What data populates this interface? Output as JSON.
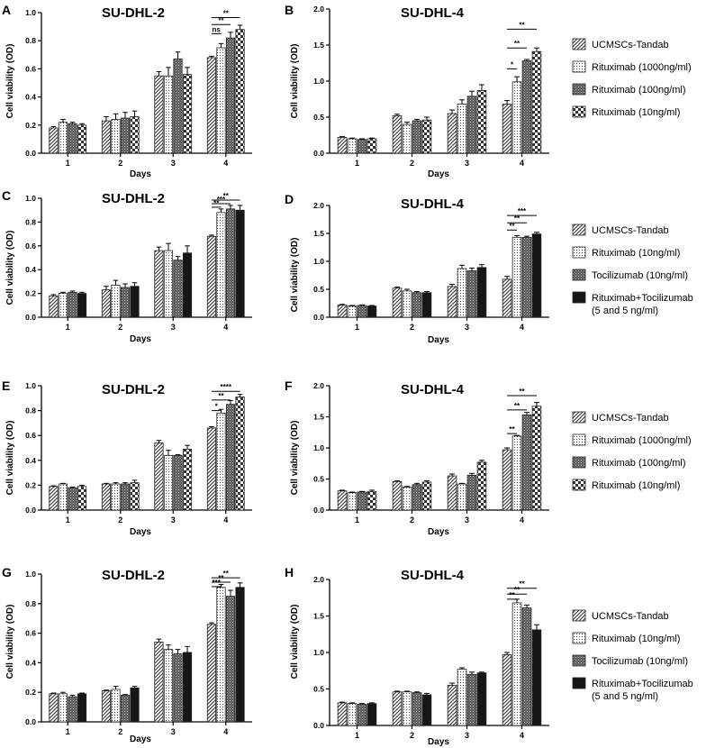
{
  "chart_data": [
    {
      "type": "bar",
      "panel": "A",
      "title": "SU-DHL-2",
      "xlabel": "Days",
      "ylabel": "Cell viability (OD)",
      "ylim": [
        0,
        1.0
      ],
      "yticks": [
        "0.0",
        "0.2",
        "0.4",
        "0.6",
        "0.8",
        "1.0"
      ],
      "categories": [
        "1",
        "2",
        "3",
        "4"
      ],
      "series": [
        {
          "name": "UCMSCs-Tandab",
          "pattern": "diag",
          "values": [
            0.18,
            0.23,
            0.55,
            0.68
          ],
          "errors": [
            0.01,
            0.03,
            0.03,
            0.01
          ]
        },
        {
          "name": "Rituximab (1000ng/ml)",
          "pattern": "dots",
          "values": [
            0.22,
            0.24,
            0.55,
            0.75
          ],
          "errors": [
            0.02,
            0.04,
            0.06,
            0.03
          ]
        },
        {
          "name": "Rituximab (100ng/ml)",
          "pattern": "dense",
          "values": [
            0.21,
            0.25,
            0.67,
            0.82
          ],
          "errors": [
            0.01,
            0.04,
            0.05,
            0.04
          ]
        },
        {
          "name": "Rituximab (10ng/ml)",
          "pattern": "checker",
          "values": [
            0.2,
            0.26,
            0.56,
            0.88
          ],
          "errors": [
            0.01,
            0.04,
            0.05,
            0.03
          ]
        }
      ],
      "significance": [
        {
          "label": "**",
          "from": 0,
          "to": 3,
          "y": 0.965
        },
        {
          "label": "**",
          "from": 0,
          "to": 2,
          "y": 0.915
        },
        {
          "label": "ns",
          "from": 0,
          "to": 1,
          "y": 0.85
        }
      ]
    },
    {
      "type": "bar",
      "panel": "B",
      "title": "SU-DHL-4",
      "xlabel": "Days",
      "ylabel": "Cell viability (OD)",
      "ylim": [
        0,
        2.0
      ],
      "yticks": [
        "0.0",
        "0.5",
        "1.0",
        "1.5",
        "2.0"
      ],
      "categories": [
        "1",
        "2",
        "3",
        "4"
      ],
      "series": [
        {
          "name": "UCMSCs-Tandab",
          "pattern": "diag",
          "values": [
            0.22,
            0.52,
            0.55,
            0.68
          ],
          "errors": [
            0.01,
            0.02,
            0.05,
            0.05
          ]
        },
        {
          "name": "Rituximab (1000ng/ml)",
          "pattern": "dots",
          "values": [
            0.2,
            0.4,
            0.68,
            0.99
          ],
          "errors": [
            0.01,
            0.03,
            0.06,
            0.07
          ]
        },
        {
          "name": "Rituximab (100ng/ml)",
          "pattern": "dense",
          "values": [
            0.19,
            0.45,
            0.79,
            1.28
          ],
          "errors": [
            0.01,
            0.02,
            0.07,
            0.02
          ]
        },
        {
          "name": "Rituximab (10ng/ml)",
          "pattern": "checker",
          "values": [
            0.2,
            0.46,
            0.87,
            1.41
          ],
          "errors": [
            0.01,
            0.04,
            0.08,
            0.05
          ]
        }
      ],
      "significance": [
        {
          "label": "**",
          "from": 0,
          "to": 3,
          "y": 1.72
        },
        {
          "label": "**",
          "from": 0,
          "to": 2,
          "y": 1.46
        },
        {
          "label": "*",
          "from": 0,
          "to": 1,
          "y": 1.17
        }
      ]
    },
    {
      "type": "bar",
      "panel": "C",
      "title": "SU-DHL-2",
      "xlabel": "Days",
      "ylabel": "Cell viability (OD)",
      "ylim": [
        0,
        1.0
      ],
      "yticks": [
        "0.0",
        "0.2",
        "0.4",
        "0.6",
        "0.8",
        "1.0"
      ],
      "categories": [
        "1",
        "2",
        "3",
        "4"
      ],
      "series": [
        {
          "name": "UCMSCs-Tandab",
          "pattern": "diag",
          "values": [
            0.18,
            0.23,
            0.56,
            0.68
          ],
          "errors": [
            0.01,
            0.03,
            0.03,
            0.01
          ]
        },
        {
          "name": "Rituximab (10ng/ml)",
          "pattern": "dots",
          "values": [
            0.2,
            0.27,
            0.56,
            0.88
          ],
          "errors": [
            0.01,
            0.04,
            0.06,
            0.03
          ]
        },
        {
          "name": "Tocilizumab (10ng/ml)",
          "pattern": "dense",
          "values": [
            0.21,
            0.25,
            0.48,
            0.91
          ],
          "errors": [
            0.01,
            0.03,
            0.03,
            0.03
          ]
        },
        {
          "name": "Rituximab+Tocilizumab (5 and 5 ng/ml)",
          "pattern": "solid",
          "values": [
            0.2,
            0.26,
            0.54,
            0.9
          ],
          "errors": [
            0.01,
            0.03,
            0.06,
            0.04
          ]
        }
      ],
      "significance": [
        {
          "label": "**",
          "from": 0,
          "to": 3,
          "y": 0.985
        },
        {
          "label": "***",
          "from": 0,
          "to": 2,
          "y": 0.955
        },
        {
          "label": "**",
          "from": 0,
          "to": 1,
          "y": 0.925
        }
      ]
    },
    {
      "type": "bar",
      "panel": "D",
      "title": "SU-DHL-4",
      "xlabel": "Days",
      "ylabel": "Cell viability (OD)",
      "ylim": [
        0,
        2.0
      ],
      "yticks": [
        "0.0",
        "0.5",
        "1.0",
        "1.5",
        "2.0"
      ],
      "categories": [
        "1",
        "2",
        "3",
        "4"
      ],
      "series": [
        {
          "name": "UCMSCs-Tandab",
          "pattern": "diag",
          "values": [
            0.22,
            0.52,
            0.55,
            0.68
          ],
          "errors": [
            0.01,
            0.02,
            0.04,
            0.05
          ]
        },
        {
          "name": "Rituximab (10ng/ml)",
          "pattern": "dots",
          "values": [
            0.2,
            0.47,
            0.87,
            1.43
          ],
          "errors": [
            0.01,
            0.03,
            0.06,
            0.03
          ]
        },
        {
          "name": "Tocilizumab (10ng/ml)",
          "pattern": "dense",
          "values": [
            0.21,
            0.44,
            0.83,
            1.43
          ],
          "errors": [
            0.01,
            0.02,
            0.05,
            0.02
          ]
        },
        {
          "name": "Rituximab+Tocilizumab (5 and 5 ng/ml)",
          "pattern": "solid",
          "values": [
            0.2,
            0.44,
            0.89,
            1.49
          ],
          "errors": [
            0.01,
            0.02,
            0.05,
            0.03
          ]
        }
      ],
      "significance": [
        {
          "label": "***",
          "from": 0,
          "to": 3,
          "y": 1.82
        },
        {
          "label": "**",
          "from": 0,
          "to": 2,
          "y": 1.69
        },
        {
          "label": "**",
          "from": 0,
          "to": 1,
          "y": 1.56
        }
      ]
    },
    {
      "type": "bar",
      "panel": "E",
      "title": "SU-DHL-2",
      "xlabel": "Days",
      "ylabel": "Cell viability (OD)",
      "ylim": [
        0,
        1.0
      ],
      "yticks": [
        "0.0",
        "0.2",
        "0.4",
        "0.6",
        "0.8",
        "1.0"
      ],
      "categories": [
        "1",
        "2",
        "3",
        "4"
      ],
      "series": [
        {
          "name": "UCMSCs-Tandab",
          "pattern": "diag",
          "values": [
            0.19,
            0.21,
            0.54,
            0.66
          ],
          "errors": [
            0.005,
            0.005,
            0.02,
            0.01
          ]
        },
        {
          "name": "Rituximab (1000ng/ml)",
          "pattern": "dots",
          "values": [
            0.21,
            0.21,
            0.44,
            0.78
          ],
          "errors": [
            0.005,
            0.01,
            0.04,
            0.03
          ]
        },
        {
          "name": "Rituximab (100ng/ml)",
          "pattern": "dense",
          "values": [
            0.18,
            0.21,
            0.44,
            0.85
          ],
          "errors": [
            0.005,
            0.01,
            0.005,
            0.03
          ]
        },
        {
          "name": "Rituximab (10ng/ml)",
          "pattern": "checker",
          "values": [
            0.19,
            0.22,
            0.49,
            0.91
          ],
          "errors": [
            0.01,
            0.02,
            0.03,
            0.02
          ]
        }
      ],
      "significance": [
        {
          "label": "****",
          "from": 0,
          "to": 3,
          "y": 0.955
        },
        {
          "label": "**",
          "from": 0,
          "to": 2,
          "y": 0.885
        },
        {
          "label": "*",
          "from": 0,
          "to": 1,
          "y": 0.8
        }
      ]
    },
    {
      "type": "bar",
      "panel": "F",
      "title": "SU-DHL-4",
      "xlabel": "Days",
      "ylabel": "Cell viability (OD)",
      "ylim": [
        0,
        2.0
      ],
      "yticks": [
        "0.0",
        "0.5",
        "1.0",
        "1.5",
        "2.0"
      ],
      "categories": [
        "1",
        "2",
        "3",
        "4"
      ],
      "series": [
        {
          "name": "UCMSCs-Tandab",
          "pattern": "diag",
          "values": [
            0.31,
            0.46,
            0.55,
            0.97
          ],
          "errors": [
            0.01,
            0.01,
            0.03,
            0.03
          ]
        },
        {
          "name": "Rituximab (1000ng/ml)",
          "pattern": "dots",
          "values": [
            0.28,
            0.37,
            0.42,
            1.19
          ],
          "errors": [
            0.01,
            0.01,
            0.01,
            0.01
          ]
        },
        {
          "name": "Rituximab (100ng/ml)",
          "pattern": "dense",
          "values": [
            0.29,
            0.41,
            0.56,
            1.53
          ],
          "errors": [
            0.01,
            0.02,
            0.03,
            0.04
          ]
        },
        {
          "name": "Rituximab (10ng/ml)",
          "pattern": "checker",
          "values": [
            0.3,
            0.45,
            0.77,
            1.67
          ],
          "errors": [
            0.02,
            0.02,
            0.03,
            0.06
          ]
        }
      ],
      "significance": [
        {
          "label": "**",
          "from": 0,
          "to": 3,
          "y": 1.84
        },
        {
          "label": "**",
          "from": 0,
          "to": 2,
          "y": 1.61
        },
        {
          "label": "**",
          "from": 0,
          "to": 1,
          "y": 1.23
        }
      ]
    },
    {
      "type": "bar",
      "panel": "G",
      "title": "SU-DHL-2",
      "xlabel": "Days",
      "ylabel": "Cell viability (OD)",
      "ylim": [
        0,
        1.0
      ],
      "yticks": [
        "0.0",
        "0.2",
        "0.4",
        "0.6",
        "0.8",
        "1.0"
      ],
      "categories": [
        "1",
        "2",
        "3",
        "4"
      ],
      "series": [
        {
          "name": "UCMSCs-Tandab",
          "pattern": "diag",
          "values": [
            0.19,
            0.21,
            0.54,
            0.66
          ],
          "errors": [
            0.005,
            0.005,
            0.02,
            0.01
          ]
        },
        {
          "name": "Rituximab (10ng/ml)",
          "pattern": "dots",
          "values": [
            0.19,
            0.22,
            0.49,
            0.91
          ],
          "errors": [
            0.01,
            0.02,
            0.03,
            0.02
          ]
        },
        {
          "name": "Tocilizumab (10ng/ml)",
          "pattern": "dense",
          "values": [
            0.17,
            0.18,
            0.46,
            0.85
          ],
          "errors": [
            0.01,
            0.005,
            0.03,
            0.04
          ]
        },
        {
          "name": "Rituximab+Tocilizumab (5 and 5 ng/ml)",
          "pattern": "solid",
          "values": [
            0.19,
            0.23,
            0.47,
            0.91
          ],
          "errors": [
            0.005,
            0.01,
            0.04,
            0.03
          ]
        }
      ],
      "significance": [
        {
          "label": "**",
          "from": 0,
          "to": 3,
          "y": 0.975
        },
        {
          "label": "**",
          "from": 0,
          "to": 2,
          "y": 0.945
        },
        {
          "label": "***",
          "from": 0,
          "to": 1,
          "y": 0.915
        }
      ]
    },
    {
      "type": "bar",
      "panel": "H",
      "title": "SU-DHL-4",
      "xlabel": "Days",
      "ylabel": "Cell viability (OD)",
      "ylim": [
        0,
        2.0
      ],
      "yticks": [
        "0.0",
        "0.5",
        "1.0",
        "1.5",
        "2.0"
      ],
      "categories": [
        "1",
        "2",
        "3",
        "4"
      ],
      "series": [
        {
          "name": "UCMSCs-Tandab",
          "pattern": "diag",
          "values": [
            0.31,
            0.46,
            0.55,
            0.97
          ],
          "errors": [
            0.01,
            0.01,
            0.03,
            0.03
          ]
        },
        {
          "name": "Rituximab (10ng/ml)",
          "pattern": "dots",
          "values": [
            0.3,
            0.46,
            0.77,
            1.68
          ],
          "errors": [
            0.01,
            0.01,
            0.02,
            0.05
          ]
        },
        {
          "name": "Tocilizumab (10ng/ml)",
          "pattern": "dense",
          "values": [
            0.29,
            0.45,
            0.7,
            1.61
          ],
          "errors": [
            0.01,
            0.01,
            0.03,
            0.04
          ]
        },
        {
          "name": "Rituximab+Tocilizumab (5 and 5 ng/ml)",
          "pattern": "solid",
          "values": [
            0.3,
            0.42,
            0.72,
            1.31
          ],
          "errors": [
            0.01,
            0.02,
            0.01,
            0.07
          ]
        }
      ],
      "significance": [
        {
          "label": "**",
          "from": 0,
          "to": 3,
          "y": 1.88
        },
        {
          "label": "**",
          "from": 0,
          "to": 2,
          "y": 1.8
        },
        {
          "label": "**",
          "from": 0,
          "to": 1,
          "y": 1.73
        }
      ]
    }
  ],
  "legends": [
    {
      "labels": [
        "UCMSCs-Tandab",
        "Rituximab (1000ng/ml)",
        "Rituximab (100ng/ml)",
        "Rituximab (10ng/ml)"
      ],
      "patterns": [
        "diag",
        "dots",
        "dense",
        "checker"
      ]
    },
    {
      "labels": [
        "UCMSCs-Tandab",
        "Rituximab (10ng/ml)",
        "Tocilizumab (10ng/ml)",
        "Rituximab+Tocilizumab",
        "(5 and 5 ng/ml)"
      ],
      "patterns": [
        "diag",
        "dots",
        "dense",
        "solid",
        ""
      ]
    },
    {
      "labels": [
        "UCMSCs-Tandab",
        "Rituximab (1000ng/ml)",
        "Rituximab (100ng/ml)",
        "Rituximab (10ng/ml)"
      ],
      "patterns": [
        "diag",
        "dots",
        "dense",
        "checker"
      ]
    },
    {
      "labels": [
        "UCMSCs-Tandab",
        "Rituximab (10ng/ml)",
        "Tocilizumab (10ng/ml)",
        "Rituximab+Tocilizumab",
        "(5 and 5 ng/ml)"
      ],
      "patterns": [
        "diag",
        "dots",
        "dense",
        "solid",
        ""
      ]
    }
  ]
}
